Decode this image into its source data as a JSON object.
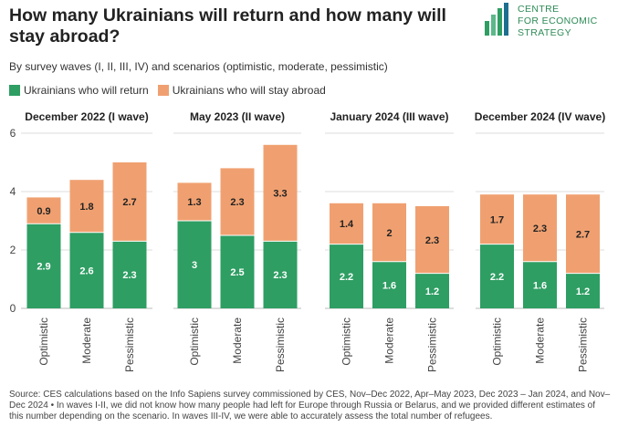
{
  "title": "How many Ukrainians will return and how many will stay abroad?",
  "logo": {
    "line1": "CENTRE",
    "line2": "FOR ECONOMIC",
    "line3": "STRATEGY"
  },
  "subtitle": "By survey waves (I, II, III, IV) and scenarios (optimistic, moderate, pessimistic)",
  "legend": [
    {
      "label": "Ukrainians who will return",
      "color": "#2e9e63"
    },
    {
      "label": "Ukrainians who will stay abroad",
      "color": "#f0a070"
    }
  ],
  "source": "Source: CES calculations based on the Info Sapiens survey commissioned by CES, Nov–Dec 2022, Apr–May 2023, Dec 2023 – Jan 2024, and Nov–Dec 2024 • In waves I-II, we did not know how many people had left for Europe through Russia or Belarus, and we provided different estimates of this number depending on the scenario. In waves III-IV, we were able to accurately assess the total number of refugees.",
  "chart_data": {
    "type": "bar",
    "stacked": true,
    "ylim": [
      0,
      6
    ],
    "yticks": [
      0,
      2,
      4,
      6
    ],
    "grid": true,
    "colors": {
      "return": "#2e9e63",
      "abroad": "#f0a070"
    },
    "panels": [
      {
        "title": "December 2022 (I wave)",
        "categories": [
          "Optimistic",
          "Moderate",
          "Pessimistic"
        ],
        "return": [
          2.9,
          2.6,
          2.3
        ],
        "abroad": [
          0.9,
          1.8,
          2.7
        ]
      },
      {
        "title": "May 2023 (II wave)",
        "categories": [
          "Optimistic",
          "Moderate",
          "Pessimistic"
        ],
        "return": [
          3,
          2.5,
          2.3
        ],
        "abroad": [
          1.3,
          2.3,
          3.3
        ]
      },
      {
        "title": "January 2024 (III wave)",
        "categories": [
          "Optimistic",
          "Moderate",
          "Pessimistic"
        ],
        "return": [
          2.2,
          1.6,
          1.2
        ],
        "abroad": [
          1.4,
          2,
          2.3
        ]
      },
      {
        "title": "December 2024 (IV wave)",
        "categories": [
          "Optimistic",
          "Moderate",
          "Pessimistic"
        ],
        "return": [
          2.2,
          1.6,
          1.2
        ],
        "abroad": [
          1.7,
          2.3,
          2.7
        ]
      }
    ]
  }
}
